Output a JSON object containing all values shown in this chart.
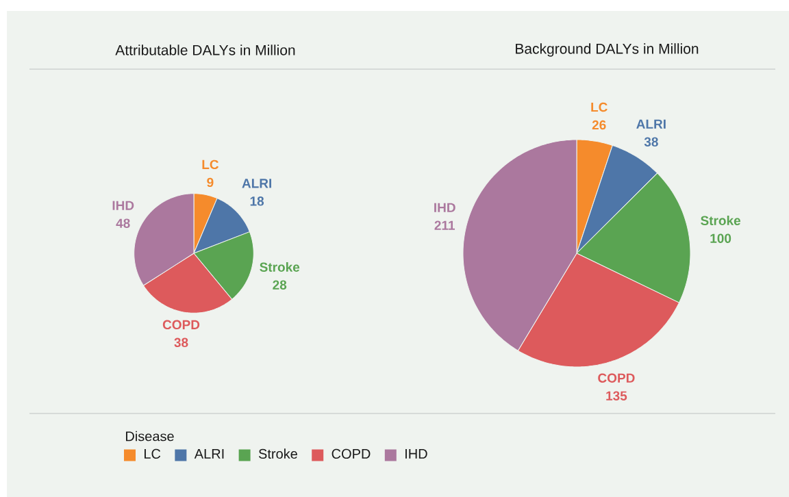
{
  "chart_data": [
    {
      "type": "pie",
      "title": "Attributable DALYs in Million",
      "categories": [
        "LC",
        "ALRI",
        "Stroke",
        "COPD",
        "IHD"
      ],
      "values": [
        9,
        18,
        28,
        38,
        48
      ],
      "colors": [
        "#f58b2c",
        "#4e76a8",
        "#5aa452",
        "#dd5a5c",
        "#ab789e"
      ],
      "data_labels": true,
      "legend": "bottom",
      "legend_title": "Disease"
    },
    {
      "type": "pie",
      "title": "Background DALYs in Million",
      "categories": [
        "LC",
        "ALRI",
        "Stroke",
        "COPD",
        "IHD"
      ],
      "values": [
        26,
        38,
        100,
        135,
        211
      ],
      "colors": [
        "#f58b2c",
        "#4e76a8",
        "#5aa452",
        "#dd5a5c",
        "#ab789e"
      ],
      "data_labels": true
    }
  ]
}
